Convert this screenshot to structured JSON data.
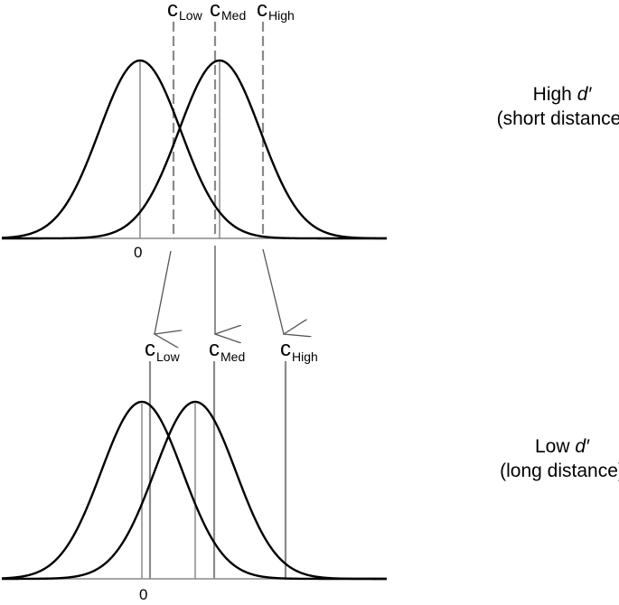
{
  "panels": {
    "top": {
      "title_line1": "High ",
      "title_dprime": "d′",
      "title_line2": "(short distance)",
      "zero_label": "0",
      "criteria": [
        {
          "symbol": "c",
          "sub": "Low"
        },
        {
          "symbol": "c",
          "sub": "Med"
        },
        {
          "symbol": "c",
          "sub": "High"
        }
      ]
    },
    "bottom": {
      "title_line1": "Low ",
      "title_dprime": "d′",
      "title_line2": "(long distance)",
      "zero_label": "0",
      "criteria": [
        {
          "symbol": "c",
          "sub": "Low"
        },
        {
          "symbol": "c",
          "sub": "Med"
        },
        {
          "symbol": "c",
          "sub": "High"
        }
      ]
    }
  },
  "colors": {
    "curve": "#000000",
    "criterion_line": "#8a8a8a",
    "axis": "#8a8a8a",
    "arrow": "#555555"
  }
}
